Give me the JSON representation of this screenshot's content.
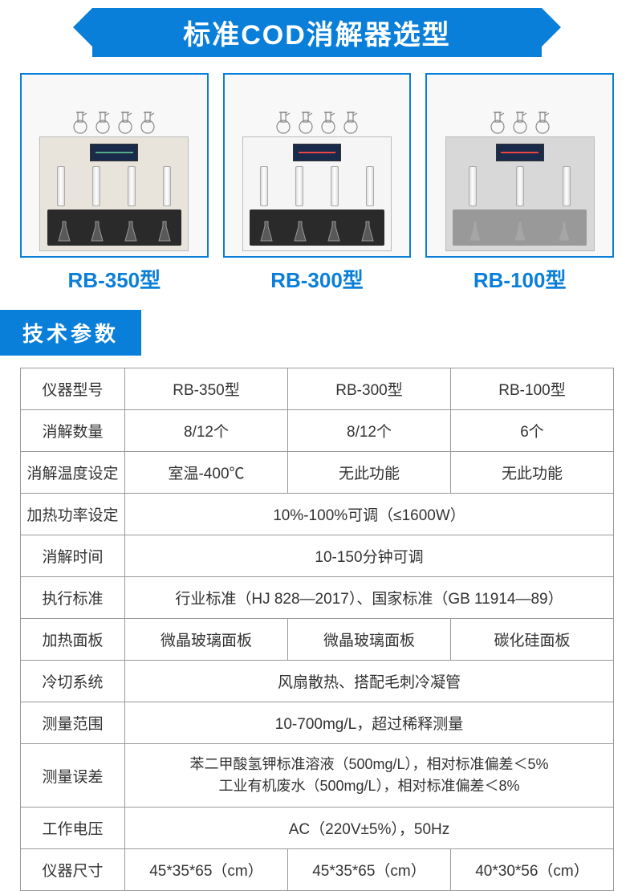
{
  "title": "标准COD消解器选型",
  "models": [
    "RB-350型",
    "RB-300型",
    "RB-100型"
  ],
  "section_label": "技术参数",
  "colors": {
    "primary": "#0a7fd9",
    "border": "#999999",
    "text": "#333333"
  },
  "table": {
    "rows": [
      {
        "label": "仪器型号",
        "cells": [
          "RB-350型",
          "RB-300型",
          "RB-100型"
        ],
        "span": false
      },
      {
        "label": "消解数量",
        "cells": [
          "8/12个",
          "8/12个",
          "6个"
        ],
        "span": false
      },
      {
        "label": "消解温度设定",
        "cells": [
          "室温-400℃",
          "无此功能",
          "无此功能"
        ],
        "span": false
      },
      {
        "label": "加热功率设定",
        "cells": [
          "10%-100%可调（≤1600W）"
        ],
        "span": true
      },
      {
        "label": "消解时间",
        "cells": [
          "10-150分钟可调"
        ],
        "span": true
      },
      {
        "label": "执行标准",
        "cells": [
          "行业标准（HJ 828—2017）、国家标准（GB 11914—89）"
        ],
        "span": true
      },
      {
        "label": "加热面板",
        "cells": [
          "微晶玻璃面板",
          "微晶玻璃面板",
          "碳化硅面板"
        ],
        "span": false
      },
      {
        "label": "冷切系统",
        "cells": [
          "风扇散热、搭配毛刺冷凝管"
        ],
        "span": true
      },
      {
        "label": "测量范围",
        "cells": [
          "10-700mg/L，超过稀释测量"
        ],
        "span": true
      },
      {
        "label": "测量误差",
        "cells": [
          "苯二甲酸氢钾标准溶液（500mg/L），相对标准偏差＜5%\n工业有机废水（500mg/L），相对标准偏差＜8%"
        ],
        "span": true,
        "twoline": true
      },
      {
        "label": "工作电压",
        "cells": [
          "AC（220V±5%），50Hz"
        ],
        "span": true
      },
      {
        "label": "仪器尺寸",
        "cells": [
          "45*35*65（cm）",
          "45*35*65（cm）",
          "40*30*56（cm）"
        ],
        "span": false
      }
    ]
  },
  "apparatus": [
    {
      "flask_count": 4,
      "tube_count": 4,
      "body_class": "",
      "panel_class": "",
      "base_class": ""
    },
    {
      "flask_count": 4,
      "tube_count": 4,
      "body_class": "white",
      "panel_class": "red",
      "base_class": ""
    },
    {
      "flask_count": 3,
      "tube_count": 3,
      "body_class": "gray",
      "panel_class": "red",
      "base_class": "light"
    }
  ]
}
